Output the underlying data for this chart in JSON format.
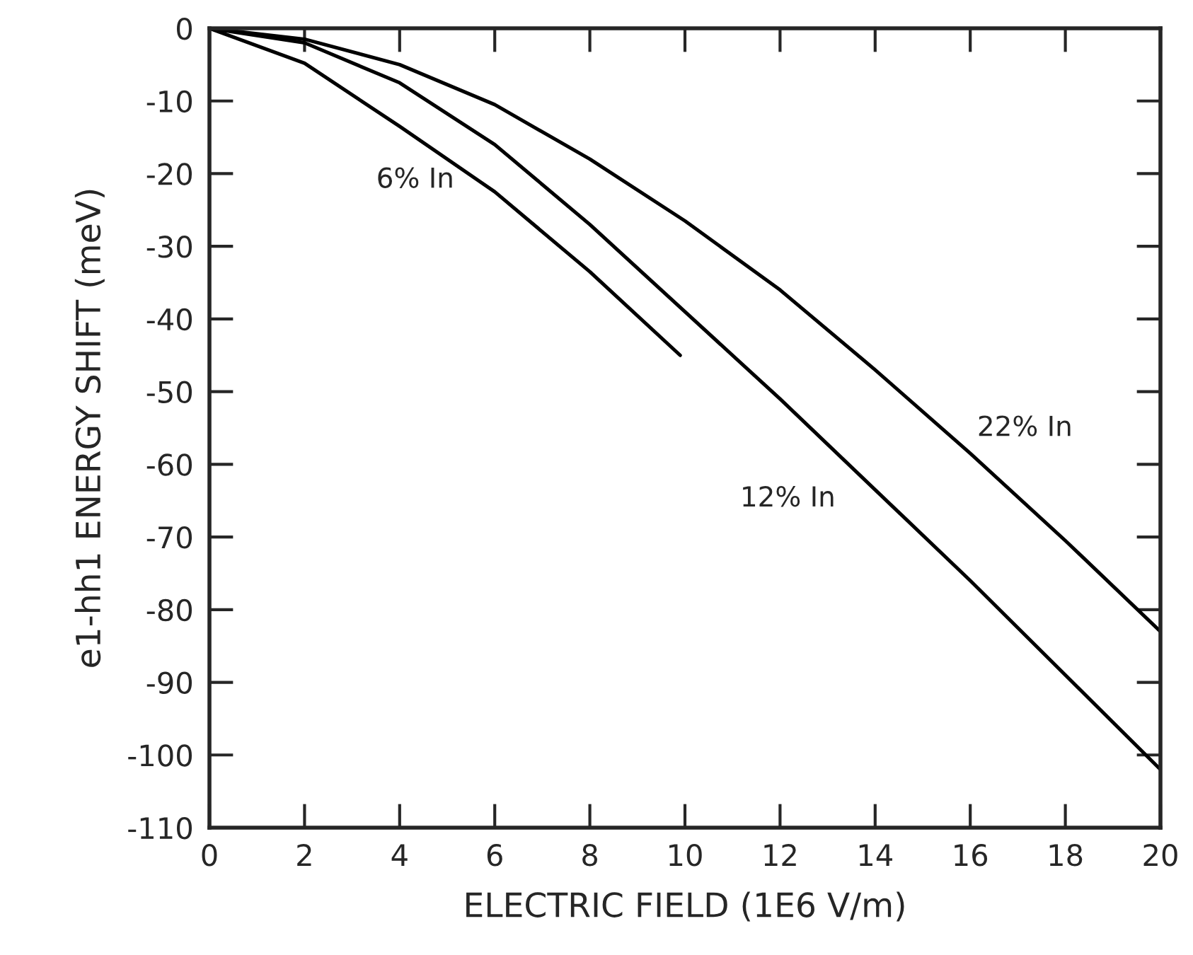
{
  "chart_data": {
    "type": "line",
    "xlabel": "ELECTRIC FIELD (1E6 V/m)",
    "ylabel": "e1-hh1 ENERGY SHIFT (meV)",
    "xlim": [
      0,
      20
    ],
    "ylim": [
      -110,
      0
    ],
    "xticks": [
      0,
      2,
      4,
      6,
      8,
      10,
      12,
      14,
      16,
      18,
      20
    ],
    "yticks": [
      0,
      -10,
      -20,
      -30,
      -40,
      -50,
      -60,
      -70,
      -80,
      -90,
      -100,
      -110
    ],
    "grid": false,
    "marker": "none",
    "line_style": "solid",
    "series": [
      {
        "name": "6% In",
        "color": "#000000",
        "x": [
          0,
          2,
          4,
          6,
          8,
          9.9
        ],
        "values": [
          0,
          -4.8,
          -13.5,
          -22.5,
          -33.5,
          -45
        ]
      },
      {
        "name": "12% In",
        "color": "#000000",
        "x": [
          0,
          2,
          4,
          6,
          8,
          10,
          12,
          14,
          16,
          18,
          20
        ],
        "values": [
          0,
          -2,
          -7.5,
          -16,
          -27,
          -39,
          -51,
          -63.5,
          -76,
          -89,
          -102
        ]
      },
      {
        "name": "22% In",
        "color": "#000000",
        "x": [
          0,
          2,
          4,
          6,
          8,
          10,
          12,
          14,
          16,
          18,
          20
        ],
        "values": [
          0,
          -1.5,
          -5,
          -10.5,
          -18,
          -26.5,
          -36,
          -47,
          -58.5,
          -70.5,
          -83
        ]
      }
    ]
  }
}
